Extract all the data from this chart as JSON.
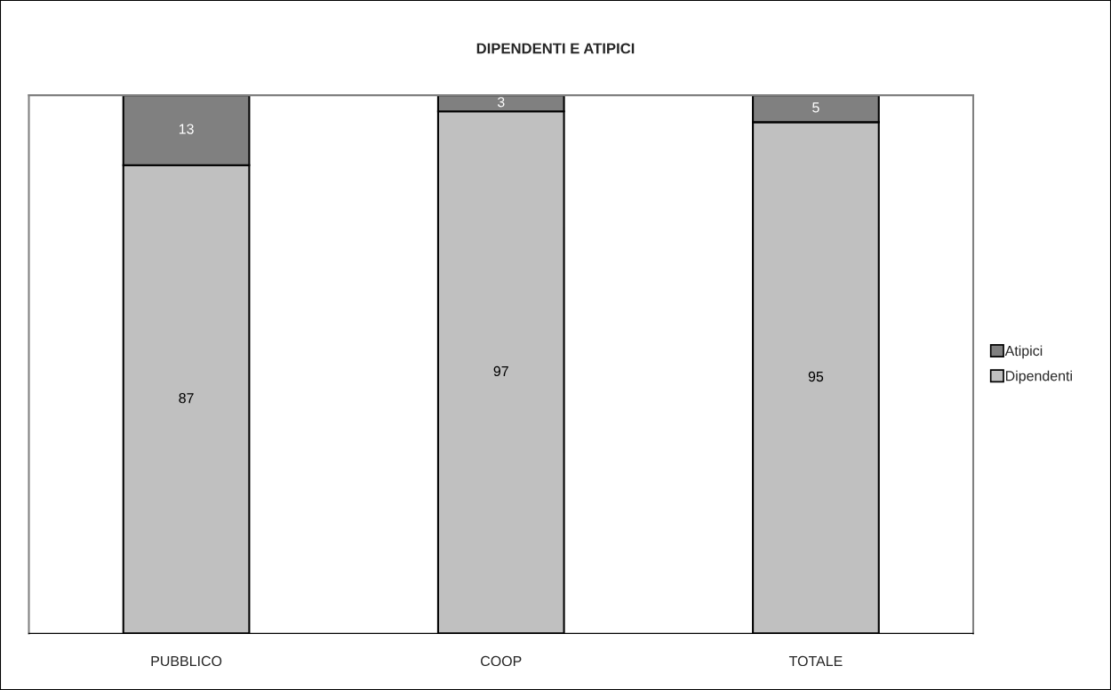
{
  "chart_data": {
    "type": "bar",
    "title": "DIPENDENTI E ATIPICI",
    "categories": [
      "PUBBLICO",
      "COOP",
      "TOTALE"
    ],
    "series": [
      {
        "name": "Dipendenti",
        "color": "#c0c0c0",
        "values": [
          87,
          97,
          95
        ]
      },
      {
        "name": "Atipici",
        "color": "#808080",
        "values": [
          13,
          3,
          5
        ]
      }
    ],
    "stacked": true,
    "ylim": [
      0,
      100
    ],
    "data_labels": true,
    "legend": "right",
    "tick_labels": "x"
  }
}
